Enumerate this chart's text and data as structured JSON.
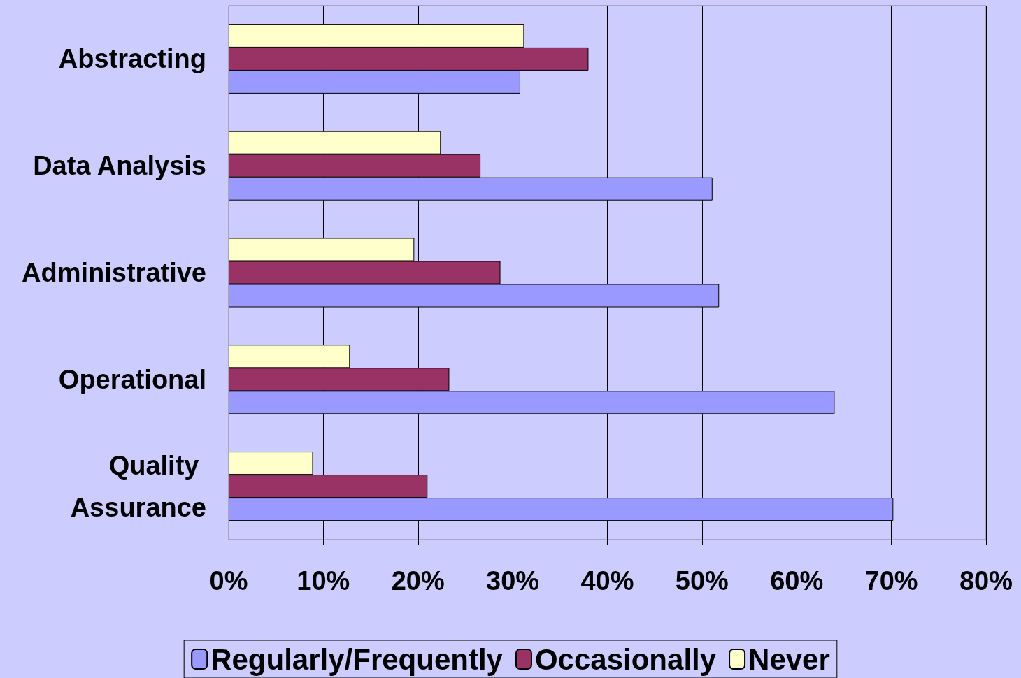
{
  "chart_data": {
    "type": "bar",
    "orientation": "horizontal",
    "categories": [
      "Abstracting",
      "Data Analysis",
      "Administrative",
      "Operational",
      "Quality Assurance"
    ],
    "series": [
      {
        "name": "Regularly/Frequently",
        "color": "#9999ff",
        "values": [
          30.8,
          51.1,
          51.8,
          64.0,
          70.2
        ]
      },
      {
        "name": "Occasionally",
        "color": "#993366",
        "values": [
          38.0,
          26.6,
          28.7,
          23.3,
          21.0
        ]
      },
      {
        "name": "Never",
        "color": "#ffffcc",
        "values": [
          31.2,
          22.4,
          19.6,
          12.8,
          8.9
        ]
      }
    ],
    "xlim": [
      0,
      80
    ],
    "xticks": [
      {
        "value": 0,
        "label": "0%"
      },
      {
        "value": 10,
        "label": "10%"
      },
      {
        "value": 20,
        "label": "20%"
      },
      {
        "value": 30,
        "label": "30%"
      },
      {
        "value": 40,
        "label": "40%"
      },
      {
        "value": 50,
        "label": "50%"
      },
      {
        "value": 60,
        "label": "60%"
      },
      {
        "value": 70,
        "label": "70%"
      },
      {
        "value": 80,
        "label": "80%"
      }
    ],
    "grid": "x",
    "legend": "bottom"
  }
}
